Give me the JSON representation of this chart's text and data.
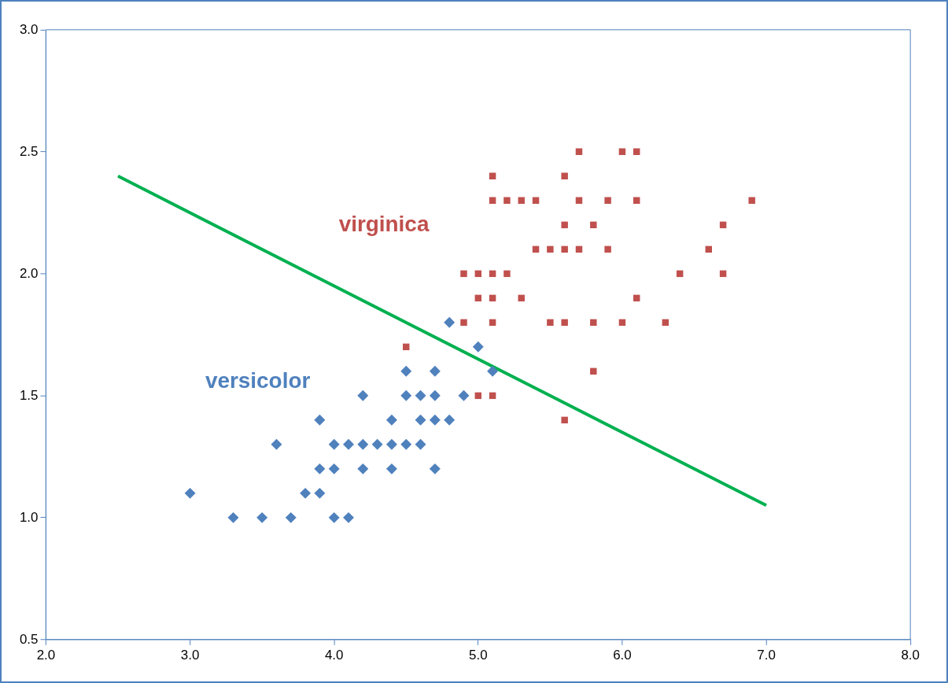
{
  "chart_data": {
    "type": "scatter",
    "xlim": [
      2,
      8
    ],
    "ylim": [
      0.5,
      3
    ],
    "xticks": [
      {
        "value": 2,
        "label": "2.0"
      },
      {
        "value": 3,
        "label": "3.0"
      },
      {
        "value": 4,
        "label": "4.0"
      },
      {
        "value": 5,
        "label": "5.0"
      },
      {
        "value": 6,
        "label": "6.0"
      },
      {
        "value": 7,
        "label": "7.0"
      },
      {
        "value": 8,
        "label": "8.0"
      }
    ],
    "yticks": [
      {
        "value": 0.5,
        "label": "0.5"
      },
      {
        "value": 1,
        "label": "1.0"
      },
      {
        "value": 1.5,
        "label": "1.5"
      },
      {
        "value": 2,
        "label": "2.0"
      },
      {
        "value": 2.5,
        "label": "2.5"
      },
      {
        "value": 3,
        "label": "3.0"
      }
    ],
    "grid": false,
    "legend": false,
    "series": [
      {
        "name": "versicolor",
        "color": "#4f81bd",
        "marker": "diamond",
        "x": [
          3.0,
          3.3,
          3.5,
          3.7,
          3.6,
          3.8,
          3.9,
          3.9,
          3.9,
          4.0,
          4.0,
          4.0,
          4.1,
          4.1,
          4.2,
          4.2,
          4.2,
          4.3,
          4.4,
          4.4,
          4.4,
          4.5,
          4.5,
          4.5,
          4.6,
          4.6,
          4.6,
          4.7,
          4.7,
          4.7,
          4.7,
          4.8,
          4.8,
          4.9,
          5.0,
          5.1
        ],
        "values": [
          1.1,
          1.0,
          1.0,
          1.0,
          1.3,
          1.1,
          1.1,
          1.2,
          1.4,
          1.0,
          1.2,
          1.3,
          1.0,
          1.3,
          1.2,
          1.3,
          1.5,
          1.3,
          1.2,
          1.3,
          1.4,
          1.3,
          1.5,
          1.6,
          1.3,
          1.4,
          1.5,
          1.2,
          1.4,
          1.5,
          1.6,
          1.4,
          1.8,
          1.5,
          1.7,
          1.6
        ]
      },
      {
        "name": "virginica",
        "color": "#c0504d",
        "marker": "square",
        "x": [
          4.5,
          4.9,
          4.9,
          5.0,
          5.0,
          5.0,
          5.1,
          5.1,
          5.1,
          5.1,
          5.1,
          5.1,
          5.2,
          5.2,
          5.3,
          5.3,
          5.4,
          5.4,
          5.5,
          5.5,
          5.6,
          5.6,
          5.6,
          5.6,
          5.6,
          5.7,
          5.7,
          5.7,
          5.8,
          5.8,
          5.8,
          5.9,
          5.9,
          6.0,
          6.0,
          6.1,
          6.1,
          6.1,
          6.3,
          6.4,
          6.6,
          6.7,
          6.7,
          6.9
        ],
        "values": [
          1.7,
          1.8,
          2.0,
          1.5,
          1.9,
          2.0,
          1.5,
          1.8,
          1.9,
          2.0,
          2.3,
          2.4,
          2.0,
          2.3,
          1.9,
          2.3,
          2.1,
          2.3,
          1.8,
          2.1,
          1.4,
          1.8,
          2.1,
          2.2,
          2.4,
          2.1,
          2.3,
          2.5,
          1.6,
          1.8,
          2.2,
          2.1,
          2.3,
          1.8,
          2.5,
          1.9,
          2.3,
          2.5,
          1.8,
          2.0,
          2.1,
          2.0,
          2.2,
          2.3
        ]
      },
      {
        "type": "line",
        "color": "#00b050",
        "marker": "none",
        "x": [
          2.5,
          7.0
        ],
        "values": [
          2.4,
          1.05
        ]
      }
    ]
  }
}
